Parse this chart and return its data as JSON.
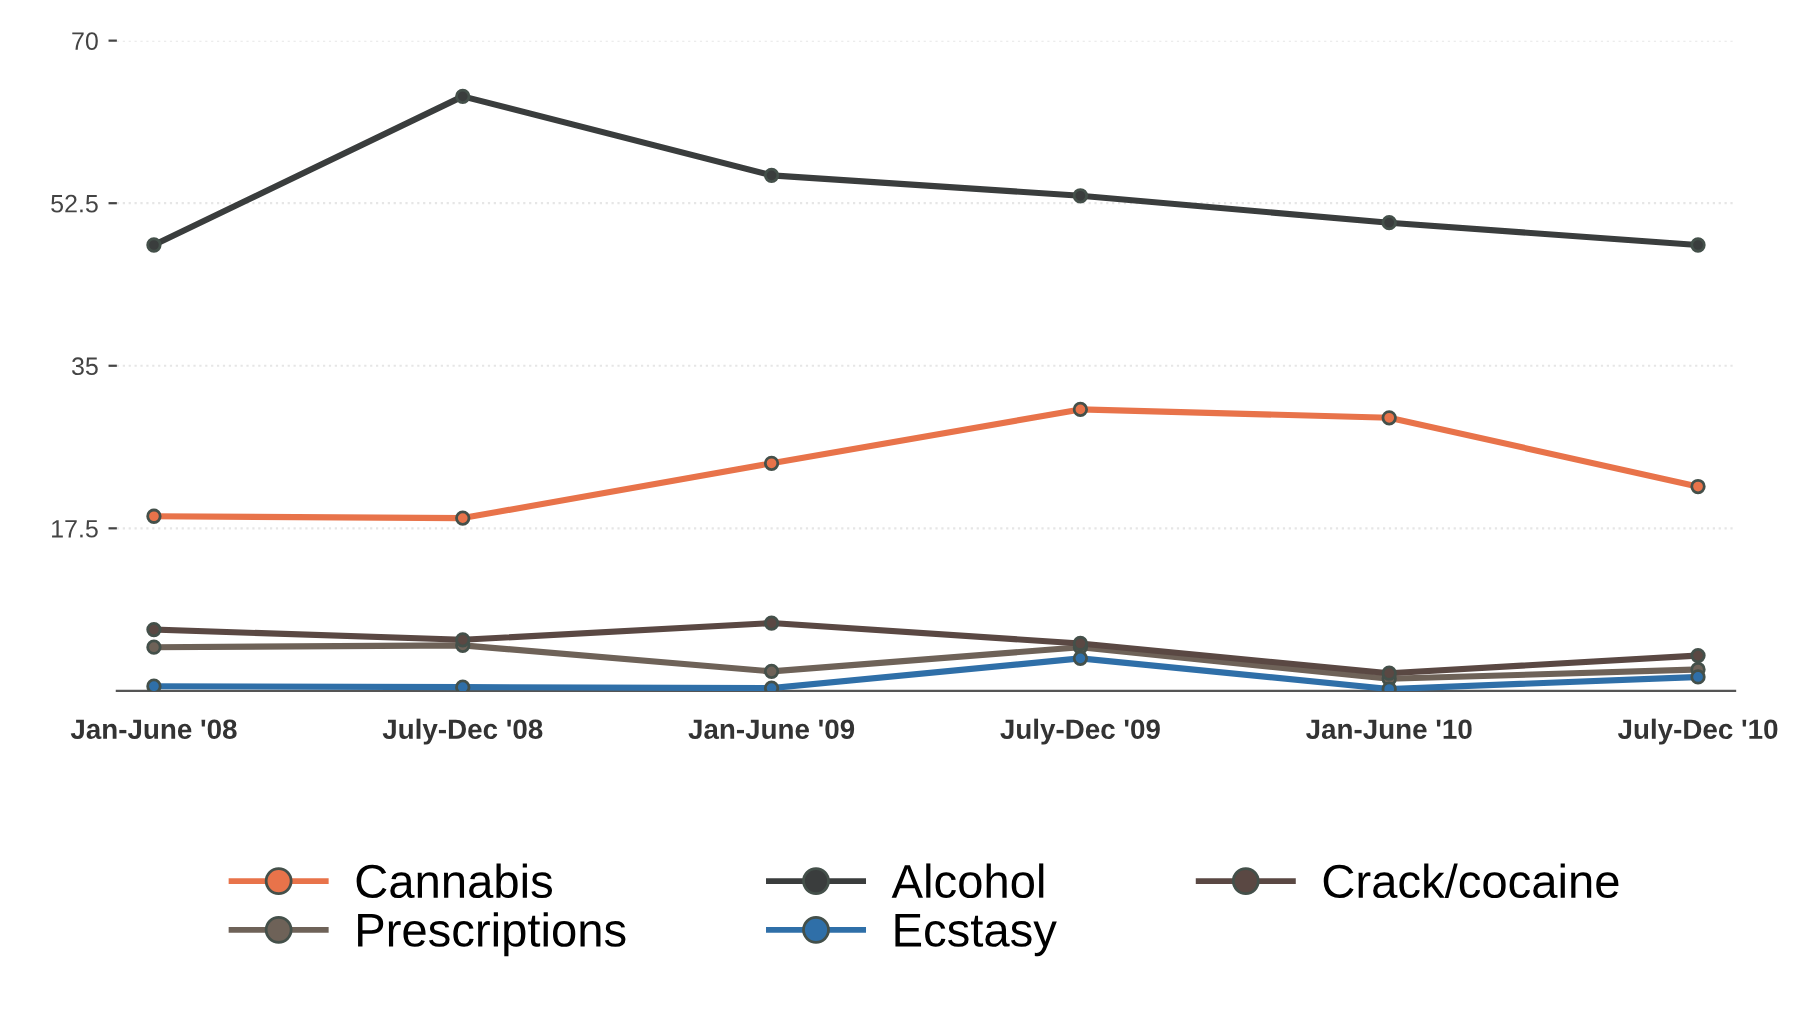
{
  "chart_data": {
    "type": "line",
    "categories": [
      "Jan-June '08",
      "July-Dec '08",
      "Jan-June '09",
      "July-Dec '09",
      "Jan-June '10",
      "July-Dec '10"
    ],
    "series": [
      {
        "name": "Cannabis",
        "color": "#e8734a",
        "values": [
          18.8,
          18.6,
          24.5,
          30.3,
          29.4,
          22.0
        ]
      },
      {
        "name": "Prescriptions",
        "color": "#6e6258",
        "values": [
          4.7,
          4.9,
          2.1,
          4.7,
          1.3,
          2.3
        ]
      },
      {
        "name": "Alcohol",
        "color": "#3a3d3d",
        "values": [
          48.0,
          64.0,
          55.5,
          53.3,
          50.4,
          48.0
        ]
      },
      {
        "name": "Ecstasy",
        "color": "#2f6fa8",
        "values": [
          0.5,
          0.4,
          0.3,
          3.5,
          0.2,
          1.5
        ]
      },
      {
        "name": "Crack/cocaine",
        "color": "#5a4843",
        "values": [
          6.6,
          5.5,
          7.3,
          5.1,
          1.9,
          3.8
        ]
      }
    ],
    "ylim": [
      0,
      70
    ],
    "yticks": [
      17.5,
      35,
      {
        "value": 52.5,
        "label": "52.5"
      },
      70
    ],
    "grid": "y",
    "legend": "bottom",
    "marker": "circle",
    "line_style": "solid"
  }
}
